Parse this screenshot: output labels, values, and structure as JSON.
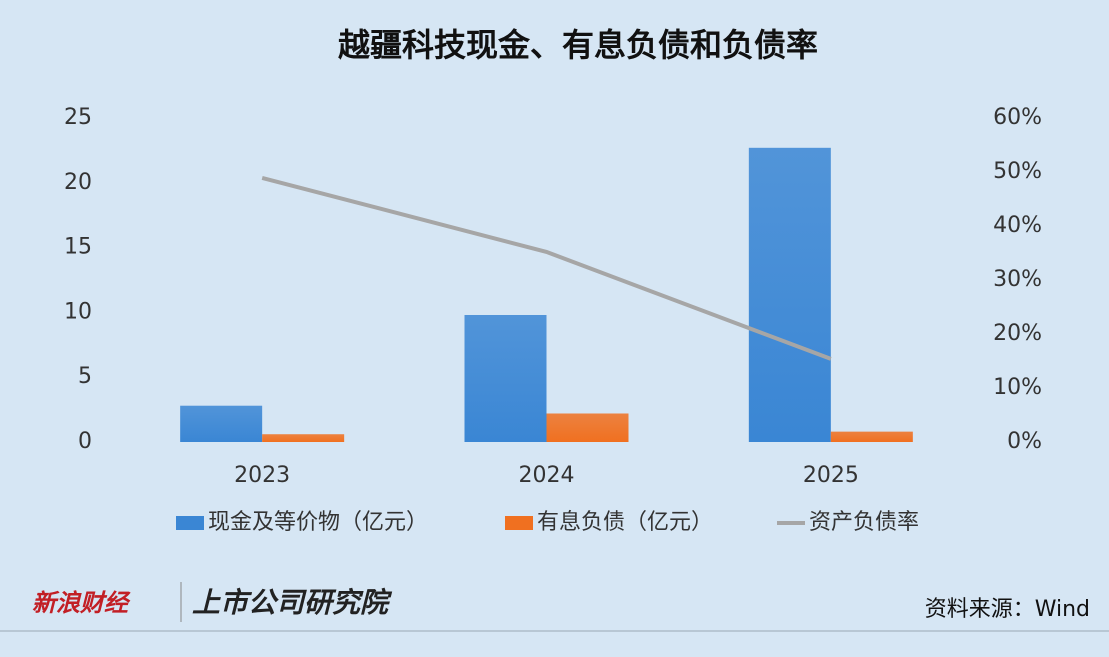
{
  "chart_data": {
    "type": "bar",
    "title": "越疆科技现金、有息负债和负债率",
    "categories": [
      "2023",
      "2024",
      "2025"
    ],
    "series": [
      {
        "name": "现金及等价物（亿元）",
        "color": "#3a86d4",
        "values": [
          2.8,
          9.8,
          22.7
        ]
      },
      {
        "name": "有息负债（亿元）",
        "color": "#f07020",
        "values": [
          0.6,
          2.2,
          0.8
        ]
      },
      {
        "name": "资产负债率",
        "color": "#a6a6a6",
        "type": "line",
        "axis": "y2",
        "values": [
          48.9,
          35.2,
          15.4
        ]
      }
    ],
    "ylim": [
      0,
      25
    ],
    "yticks": [
      0,
      5,
      10,
      15,
      20,
      25
    ],
    "y2lim": [
      0,
      60
    ],
    "y2ticks": [
      {
        "value": 0,
        "label": "0%"
      },
      {
        "value": 10,
        "label": "10%"
      },
      {
        "value": 20,
        "label": "20%"
      },
      {
        "value": 30,
        "label": "30%"
      },
      {
        "value": 40,
        "label": "40%"
      },
      {
        "value": 50,
        "label": "50%"
      },
      {
        "value": 60,
        "label": "60%"
      }
    ],
    "grid": false,
    "legend": "bottom",
    "source": "资料来源：Wind",
    "logo": [
      "新浪财经",
      "上市公司研究院"
    ]
  }
}
